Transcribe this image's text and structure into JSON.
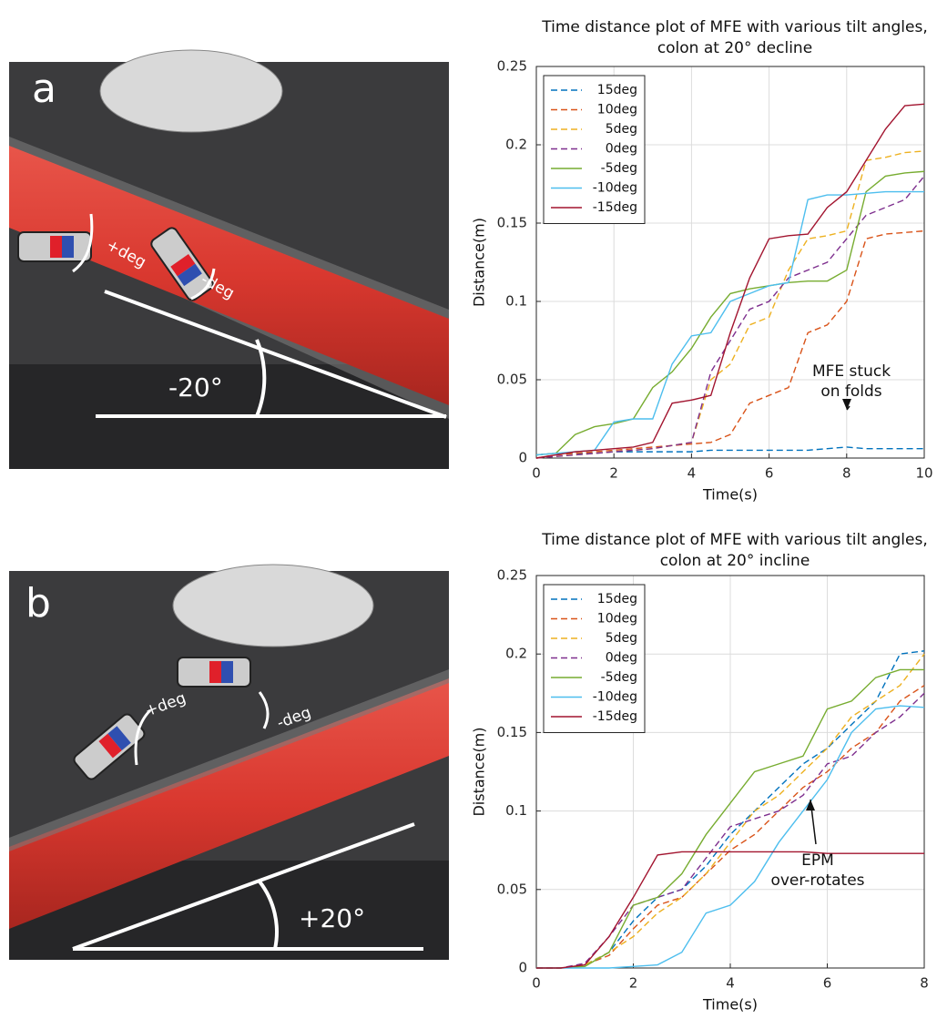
{
  "photos": [
    {
      "label": "a",
      "annotations": [
        "+deg",
        "-deg",
        "-20°"
      ]
    },
    {
      "label": "b",
      "annotations": [
        "+deg",
        "-deg",
        "+20°"
      ]
    }
  ],
  "chart_data": [
    {
      "type": "line",
      "title": [
        "Time distance plot of MFE with various tilt angles,",
        "colon at 20° decline"
      ],
      "x_label": "Time(s)",
      "y_label": "Distance(m)",
      "x": [
        0,
        0.5,
        1,
        1.5,
        2,
        2.5,
        3,
        3.5,
        4,
        4.5,
        5,
        5.5,
        6,
        6.5,
        7,
        7.5,
        8,
        8.5,
        9,
        9.5,
        10
      ],
      "xlim": [
        0,
        10
      ],
      "xticks": [
        0,
        2,
        4,
        6,
        8,
        10
      ],
      "ylim": [
        0,
        0.25
      ],
      "yticks": [
        0,
        0.05,
        0.1,
        0.15,
        0.2,
        0.25
      ],
      "grid": true,
      "legend": "upper left",
      "annotation": [
        "MFE stuck",
        "on folds"
      ],
      "series": [
        {
          "name": "15deg",
          "color": "#0072BD",
          "dashed": true,
          "values": [
            0.002,
            0.003,
            0.003,
            0.003,
            0.004,
            0.004,
            0.004,
            0.004,
            0.004,
            0.005,
            0.005,
            0.005,
            0.005,
            0.005,
            0.005,
            0.006,
            0.007,
            0.006,
            0.006,
            0.006,
            0.006
          ]
        },
        {
          "name": "10deg",
          "color": "#D95319",
          "dashed": true,
          "values": [
            0,
            0.002,
            0.003,
            0.004,
            0.005,
            0.006,
            0.007,
            0.008,
            0.009,
            0.01,
            0.015,
            0.035,
            0.04,
            0.045,
            0.08,
            0.085,
            0.1,
            0.14,
            0.143,
            0.144,
            0.145
          ]
        },
        {
          "name": "5deg",
          "color": "#EDB120",
          "dashed": true,
          "values": [
            0,
            0.001,
            0.002,
            0.003,
            0.004,
            0.005,
            0.006,
            0.008,
            0.01,
            0.05,
            0.06,
            0.085,
            0.09,
            0.12,
            0.14,
            0.142,
            0.145,
            0.19,
            0.192,
            0.195,
            0.196
          ]
        },
        {
          "name": "0deg",
          "color": "#7E2F8E",
          "dashed": true,
          "values": [
            0,
            0.001,
            0.002,
            0.003,
            0.004,
            0.005,
            0.006,
            0.008,
            0.01,
            0.055,
            0.075,
            0.095,
            0.1,
            0.115,
            0.12,
            0.125,
            0.14,
            0.155,
            0.16,
            0.165,
            0.18
          ]
        },
        {
          "name": "-5deg",
          "color": "#77AC30",
          "dashed": false,
          "values": [
            0.002,
            0.003,
            0.015,
            0.02,
            0.022,
            0.025,
            0.045,
            0.055,
            0.07,
            0.09,
            0.105,
            0.108,
            0.11,
            0.112,
            0.113,
            0.113,
            0.12,
            0.17,
            0.18,
            0.182,
            0.183
          ]
        },
        {
          "name": "-10deg",
          "color": "#4DBEEE",
          "dashed": false,
          "values": [
            0.002,
            0.003,
            0.004,
            0.005,
            0.023,
            0.025,
            0.025,
            0.06,
            0.078,
            0.08,
            0.1,
            0.105,
            0.11,
            0.112,
            0.165,
            0.168,
            0.168,
            0.169,
            0.17,
            0.17,
            0.17
          ]
        },
        {
          "name": "-15deg",
          "color": "#A2142F",
          "dashed": false,
          "values": [
            0,
            0.002,
            0.004,
            0.005,
            0.006,
            0.007,
            0.01,
            0.035,
            0.037,
            0.04,
            0.08,
            0.115,
            0.14,
            0.142,
            0.143,
            0.16,
            0.17,
            0.19,
            0.21,
            0.225,
            0.226
          ]
        }
      ]
    },
    {
      "type": "line",
      "title": [
        "Time distance plot of MFE with various tilt angles,",
        "colon at 20° incline"
      ],
      "x_label": "Time(s)",
      "y_label": "Distance(m)",
      "x": [
        0,
        0.5,
        1,
        1.5,
        2,
        2.5,
        3,
        3.5,
        4,
        4.5,
        5,
        5.5,
        6,
        6.5,
        7,
        7.5,
        8
      ],
      "xlim": [
        0,
        8
      ],
      "xticks": [
        0,
        2,
        4,
        6,
        8
      ],
      "ylim": [
        0,
        0.25
      ],
      "yticks": [
        0,
        0.05,
        0.1,
        0.15,
        0.2,
        0.25
      ],
      "grid": true,
      "legend": "upper left",
      "annotation": [
        "EPM",
        "over-rotates"
      ],
      "series": [
        {
          "name": "15deg",
          "color": "#0072BD",
          "dashed": true,
          "values": [
            0,
            0,
            0.002,
            0.01,
            0.03,
            0.045,
            0.05,
            0.065,
            0.085,
            0.1,
            0.115,
            0.13,
            0.14,
            0.155,
            0.17,
            0.2,
            0.202
          ]
        },
        {
          "name": "10deg",
          "color": "#D95319",
          "dashed": true,
          "values": [
            0,
            0,
            0.002,
            0.008,
            0.025,
            0.04,
            0.045,
            0.06,
            0.075,
            0.085,
            0.1,
            0.115,
            0.125,
            0.14,
            0.15,
            0.17,
            0.18
          ]
        },
        {
          "name": "5deg",
          "color": "#EDB120",
          "dashed": true,
          "values": [
            0,
            0,
            0.002,
            0.01,
            0.02,
            0.035,
            0.045,
            0.06,
            0.08,
            0.1,
            0.11,
            0.125,
            0.14,
            0.16,
            0.17,
            0.18,
            0.2
          ]
        },
        {
          "name": "0deg",
          "color": "#7E2F8E",
          "dashed": true,
          "values": [
            0,
            0,
            0.003,
            0.02,
            0.04,
            0.045,
            0.05,
            0.07,
            0.09,
            0.095,
            0.1,
            0.11,
            0.13,
            0.135,
            0.15,
            0.16,
            0.175
          ]
        },
        {
          "name": "-5deg",
          "color": "#77AC30",
          "dashed": false,
          "values": [
            0,
            0,
            0.001,
            0.01,
            0.04,
            0.045,
            0.06,
            0.085,
            0.105,
            0.125,
            0.13,
            0.135,
            0.165,
            0.17,
            0.185,
            0.19,
            0.19
          ]
        },
        {
          "name": "-10deg",
          "color": "#4DBEEE",
          "dashed": false,
          "values": [
            0,
            0,
            0,
            0,
            0.001,
            0.002,
            0.01,
            0.035,
            0.04,
            0.055,
            0.08,
            0.1,
            0.12,
            0.15,
            0.165,
            0.167,
            0.166
          ]
        },
        {
          "name": "-15deg",
          "color": "#A2142F",
          "dashed": false,
          "values": [
            0,
            0,
            0.002,
            0.02,
            0.045,
            0.072,
            0.074,
            0.074,
            0.074,
            0.074,
            0.074,
            0.074,
            0.073,
            0.073,
            0.073,
            0.073,
            0.073
          ]
        }
      ]
    }
  ]
}
